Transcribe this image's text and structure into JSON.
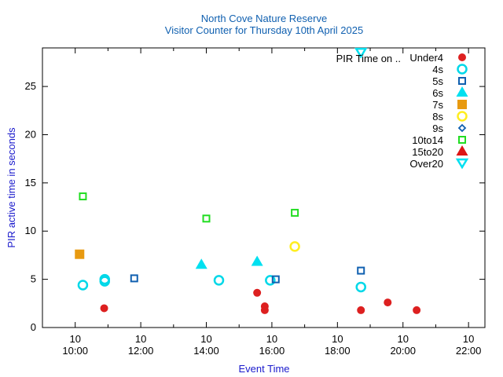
{
  "chart_data": {
    "type": "scatter",
    "title": "North Cove Nature Reserve",
    "subtitle": "Visitor Counter for Thursday 10th April 2025",
    "xlabel": "Event Time",
    "ylabel": "PIR active time in seconds",
    "legend_title": "PIR Time on ..",
    "legend_position": "top-right",
    "grid": false,
    "ylim": [
      0,
      29
    ],
    "yticks": [
      "0",
      "5",
      "10",
      "15",
      "20",
      "25"
    ],
    "xlim": [
      "09:00",
      "22:30"
    ],
    "xticks": [
      {
        "x": "10:00",
        "label": "10:00"
      },
      {
        "x": "12:00",
        "label": "12:00"
      },
      {
        "x": "14:00",
        "label": "14:00"
      },
      {
        "x": "16:00",
        "label": "16:00"
      },
      {
        "x": "18:00",
        "label": "18:00"
      },
      {
        "x": "20:00",
        "label": "20:00"
      },
      {
        "x": "22:00",
        "label": "22:00"
      }
    ],
    "xtick_top": [
      "10",
      "10",
      "10",
      "10",
      "10",
      "10",
      "10"
    ],
    "colors": {
      "title": "#1060b0",
      "axis_label": "#1a1acc"
    },
    "series": [
      {
        "name": "Under4",
        "marker": "circle-filled",
        "color": "#dd2020",
        "points": [
          {
            "x": "10:53",
            "y": 2.0
          },
          {
            "x": "15:33",
            "y": 3.6
          },
          {
            "x": "15:47",
            "y": 2.2
          },
          {
            "x": "15:47",
            "y": 1.8
          },
          {
            "x": "18:43",
            "y": 1.8
          },
          {
            "x": "19:32",
            "y": 2.6
          },
          {
            "x": "20:25",
            "y": 1.8
          }
        ]
      },
      {
        "name": "4s",
        "marker": "circle-open",
        "color": "#00d8e8",
        "points": [
          {
            "x": "10:14",
            "y": 4.4
          },
          {
            "x": "10:54",
            "y": 4.8
          },
          {
            "x": "10:54",
            "y": 5.0
          },
          {
            "x": "14:23",
            "y": 4.9
          },
          {
            "x": "15:57",
            "y": 4.9
          },
          {
            "x": "18:43",
            "y": 4.2
          }
        ]
      },
      {
        "name": "5s",
        "marker": "square-open",
        "color": "#1060b0",
        "points": [
          {
            "x": "11:48",
            "y": 5.1
          },
          {
            "x": "16:07",
            "y": 5.0
          },
          {
            "x": "18:43",
            "y": 5.9
          }
        ]
      },
      {
        "name": "6s",
        "marker": "triangle-filled",
        "color": "#00e0f0",
        "points": [
          {
            "x": "13:51",
            "y": 6.5
          },
          {
            "x": "15:33",
            "y": 6.8
          }
        ]
      },
      {
        "name": "7s",
        "marker": "square-filled",
        "color": "#e89a10",
        "points": [
          {
            "x": "10:08",
            "y": 7.6
          }
        ]
      },
      {
        "name": "8s",
        "marker": "circle-open",
        "color": "#ffee20",
        "points": [
          {
            "x": "16:42",
            "y": 8.4
          }
        ]
      },
      {
        "name": "9s",
        "marker": "diamond-open",
        "color": "#1060b0",
        "points": []
      },
      {
        "name": "10to14",
        "marker": "square-open",
        "color": "#22dd22",
        "points": [
          {
            "x": "10:14",
            "y": 13.6
          },
          {
            "x": "14:00",
            "y": 11.3
          },
          {
            "x": "16:42",
            "y": 11.9
          }
        ]
      },
      {
        "name": "15to20",
        "marker": "triangle-filled",
        "color": "#dd1515",
        "points": []
      },
      {
        "name": "Over20",
        "marker": "triangle-down-open",
        "color": "#00e0f0",
        "points": [
          {
            "x": "18:43",
            "y": 28.5
          }
        ]
      }
    ]
  }
}
